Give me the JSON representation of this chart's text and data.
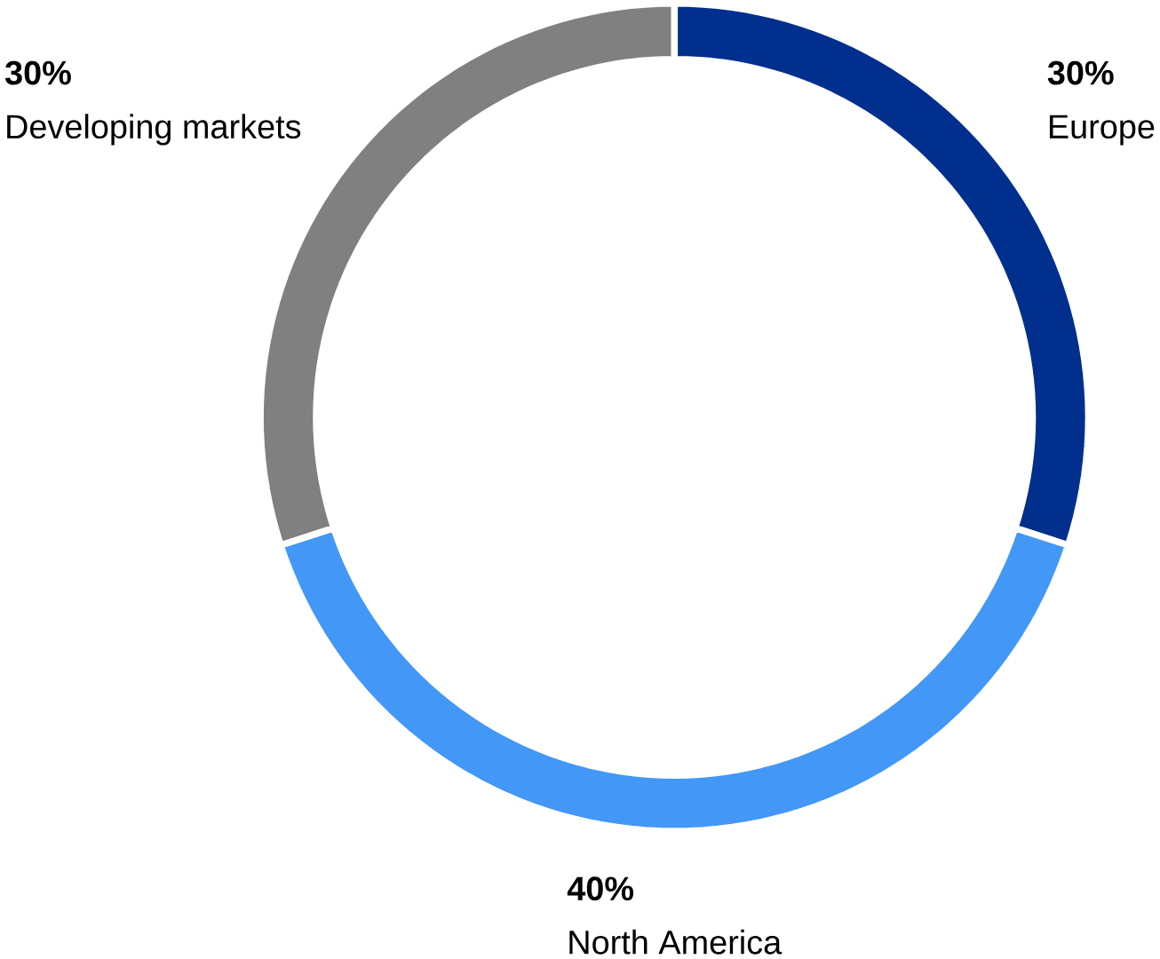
{
  "chart_data": {
    "type": "donut",
    "categories": [
      "Europe",
      "North America",
      "Developing markets"
    ],
    "values": [
      30,
      40,
      30
    ],
    "value_labels": [
      "30%",
      "40%",
      "30%"
    ],
    "colors": [
      "#002f8d",
      "#4397f7",
      "#808080"
    ]
  }
}
